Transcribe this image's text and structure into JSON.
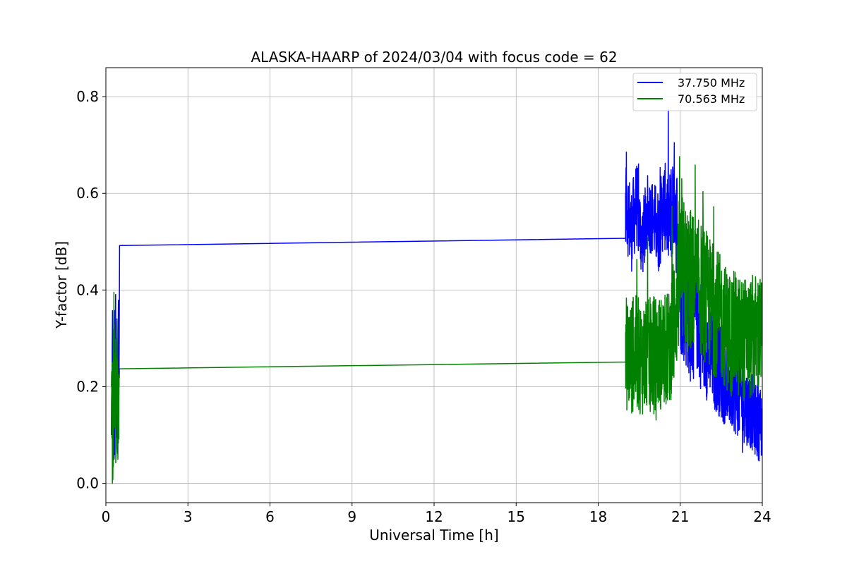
{
  "chart_data": {
    "type": "line",
    "title": "ALASKA-HAARP of 2024/03/04 with focus code = 62",
    "xlabel": "Universal Time [h]",
    "ylabel": "Y-factor [dB]",
    "xlim": [
      0,
      24
    ],
    "ylim": [
      -0.04,
      0.86
    ],
    "xticks": [
      0,
      3,
      6,
      9,
      12,
      15,
      18,
      21,
      24
    ],
    "xtick_labels": [
      "0",
      "3",
      "6",
      "9",
      "12",
      "15",
      "18",
      "21",
      "24"
    ],
    "yticks": [
      0.0,
      0.2,
      0.4,
      0.6,
      0.8
    ],
    "ytick_labels": [
      "0.0",
      "0.2",
      "0.4",
      "0.6",
      "0.8"
    ],
    "grid": true,
    "legend_position": "top-right",
    "series": [
      {
        "name": "37.750 MHz",
        "color": "#0000ff",
        "x": [
          0.2,
          0.25,
          0.3,
          0.35,
          0.4,
          0.45,
          0.48,
          0.5,
          19.0,
          19.0,
          19.2,
          19.4,
          19.6,
          19.8,
          20.0,
          20.2,
          20.4,
          20.6,
          20.8,
          21.0,
          21.2,
          21.4,
          21.6,
          21.8,
          22.0,
          22.2,
          22.4,
          22.6,
          22.8,
          23.0,
          23.2,
          23.4,
          23.6,
          23.8,
          24.0
        ],
        "y": [
          0.1,
          0.3,
          0.05,
          0.33,
          0.1,
          0.3,
          0.2,
          0.492,
          0.507,
          0.6,
          0.52,
          0.58,
          0.5,
          0.56,
          0.55,
          0.52,
          0.58,
          0.54,
          0.6,
          0.42,
          0.38,
          0.33,
          0.35,
          0.3,
          0.28,
          0.26,
          0.24,
          0.22,
          0.2,
          0.19,
          0.18,
          0.16,
          0.15,
          0.13,
          0.12
        ],
        "noise": [
          0.14,
          0.14,
          0.14,
          0.14,
          0.14,
          0.14,
          0.1,
          0,
          0,
          0.1,
          0.09,
          0.09,
          0.08,
          0.08,
          0.08,
          0.09,
          0.09,
          0.1,
          0.12,
          0.15,
          0.14,
          0.13,
          0.12,
          0.12,
          0.11,
          0.11,
          0.1,
          0.1,
          0.09,
          0.09,
          0.09,
          0.08,
          0.08,
          0.08,
          0.08
        ]
      },
      {
        "name": "70.563 MHz",
        "color": "#008000",
        "x": [
          0.2,
          0.25,
          0.3,
          0.35,
          0.4,
          0.45,
          0.48,
          0.5,
          19.0,
          19.0,
          19.2,
          19.4,
          19.6,
          19.8,
          20.0,
          20.2,
          20.4,
          20.6,
          20.8,
          21.0,
          21.2,
          21.4,
          21.6,
          21.8,
          22.0,
          22.2,
          22.4,
          22.6,
          22.8,
          23.0,
          23.2,
          23.4,
          23.6,
          23.8,
          24.0
        ],
        "y": [
          0.2,
          0.08,
          0.3,
          0.15,
          0.25,
          0.1,
          0.22,
          0.237,
          0.251,
          0.27,
          0.26,
          0.27,
          0.26,
          0.26,
          0.27,
          0.27,
          0.27,
          0.28,
          0.35,
          0.45,
          0.42,
          0.42,
          0.41,
          0.4,
          0.38,
          0.36,
          0.35,
          0.33,
          0.31,
          0.31,
          0.3,
          0.3,
          0.3,
          0.31,
          0.3
        ],
        "noise": [
          0.14,
          0.14,
          0.14,
          0.14,
          0.14,
          0.14,
          0.1,
          0,
          0,
          0.12,
          0.12,
          0.12,
          0.12,
          0.12,
          0.12,
          0.12,
          0.12,
          0.12,
          0.15,
          0.16,
          0.16,
          0.15,
          0.14,
          0.14,
          0.14,
          0.14,
          0.13,
          0.13,
          0.13,
          0.13,
          0.13,
          0.13,
          0.13,
          0.13,
          0.13
        ]
      }
    ]
  }
}
